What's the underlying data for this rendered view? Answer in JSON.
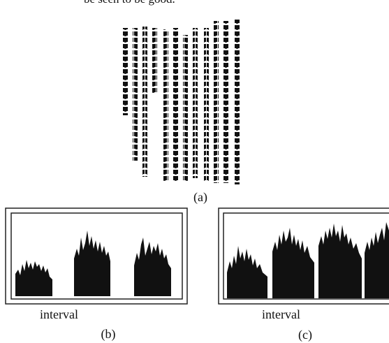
{
  "caption_top": "be seen to be good.",
  "figure": {
    "panel_a": {
      "label": "(a)"
    },
    "panel_b": {
      "axis_label": "interval",
      "label": "(b)"
    },
    "panel_c": {
      "axis_label": "interval",
      "label": "(c)"
    }
  }
}
